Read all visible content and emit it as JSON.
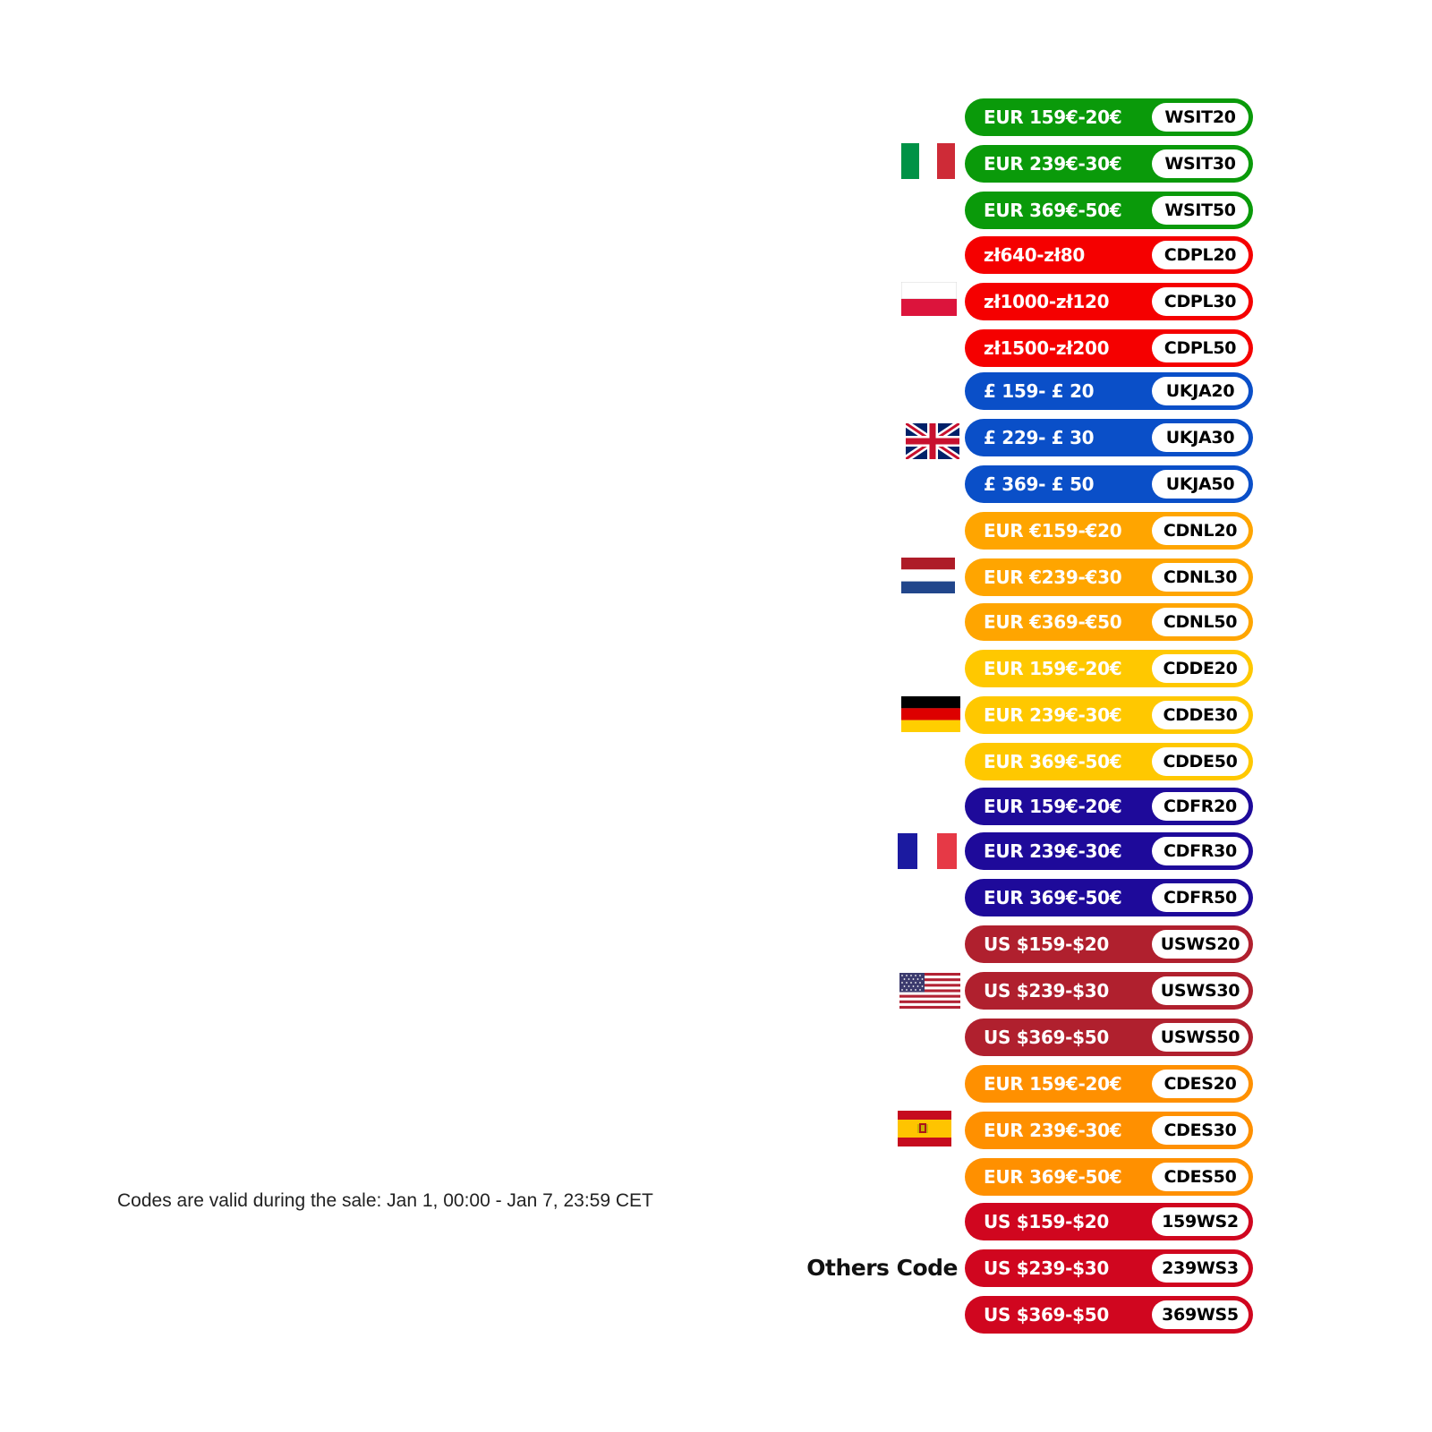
{
  "footnote": "Codes are valid during the sale: Jan 1, 00:00 - Jan 7, 23:59 CET",
  "others_label": "Others Code",
  "groups": [
    {
      "country": "italy",
      "flag_icon": "italy-flag-icon",
      "color": "#0a9a0a",
      "items": [
        {
          "price": "EUR 159€-20€",
          "code": "WSIT20"
        },
        {
          "price": "EUR 239€-30€",
          "code": "WSIT30"
        },
        {
          "price": "EUR 369€-50€",
          "code": "WSIT50"
        }
      ]
    },
    {
      "country": "poland",
      "flag_icon": "poland-flag-icon",
      "color": "#f50000",
      "items": [
        {
          "price": "zł640-zł80",
          "code": "CDPL20"
        },
        {
          "price": "zł1000-zł120",
          "code": "CDPL30"
        },
        {
          "price": "zł1500-zł200",
          "code": "CDPL50"
        }
      ]
    },
    {
      "country": "united-kingdom",
      "flag_icon": "uk-flag-icon",
      "color": "#0a4fc8",
      "items": [
        {
          "price": "£ 159- £ 20",
          "code": "UKJA20"
        },
        {
          "price": "£ 229- £ 30",
          "code": "UKJA30"
        },
        {
          "price": "£ 369- £ 50",
          "code": "UKJA50"
        }
      ]
    },
    {
      "country": "netherlands",
      "flag_icon": "netherlands-flag-icon",
      "color": "#ffa500",
      "items": [
        {
          "price": "EUR €159-€20",
          "code": "CDNL20"
        },
        {
          "price": "EUR €239-€30",
          "code": "CDNL30"
        },
        {
          "price": "EUR €369-€50",
          "code": "CDNL50"
        }
      ]
    },
    {
      "country": "germany",
      "flag_icon": "germany-flag-icon",
      "color": "#ffc800",
      "items": [
        {
          "price": "EUR 159€-20€",
          "code": "CDDE20"
        },
        {
          "price": "EUR 239€-30€",
          "code": "CDDE30"
        },
        {
          "price": "EUR 369€-50€",
          "code": "CDDE50"
        }
      ]
    },
    {
      "country": "france",
      "flag_icon": "france-flag-icon",
      "color": "#1e0a9a",
      "items": [
        {
          "price": "EUR 159€-20€",
          "code": "CDFR20"
        },
        {
          "price": "EUR 239€-30€",
          "code": "CDFR30"
        },
        {
          "price": "EUR 369€-50€",
          "code": "CDFR50"
        }
      ]
    },
    {
      "country": "united-states",
      "flag_icon": "usa-flag-icon",
      "color": "#b0202e",
      "items": [
        {
          "price": "US $159-$20",
          "code": "USWS20"
        },
        {
          "price": "US $239-$30",
          "code": "USWS30"
        },
        {
          "price": "US $369-$50",
          "code": "USWS50"
        }
      ]
    },
    {
      "country": "spain",
      "flag_icon": "spain-flag-icon",
      "color": "#ff9000",
      "items": [
        {
          "price": "EUR 159€-20€",
          "code": "CDES20"
        },
        {
          "price": "EUR 239€-30€",
          "code": "CDES30"
        },
        {
          "price": "EUR 369€-50€",
          "code": "CDES50"
        }
      ]
    },
    {
      "country": "others",
      "flag_icon": "",
      "color": "#d0061f",
      "items": [
        {
          "price": "US $159-$20",
          "code": "159WS2"
        },
        {
          "price": "US $239-$30",
          "code": "239WS3"
        },
        {
          "price": "US $369-$50",
          "code": "369WS5"
        }
      ]
    }
  ]
}
